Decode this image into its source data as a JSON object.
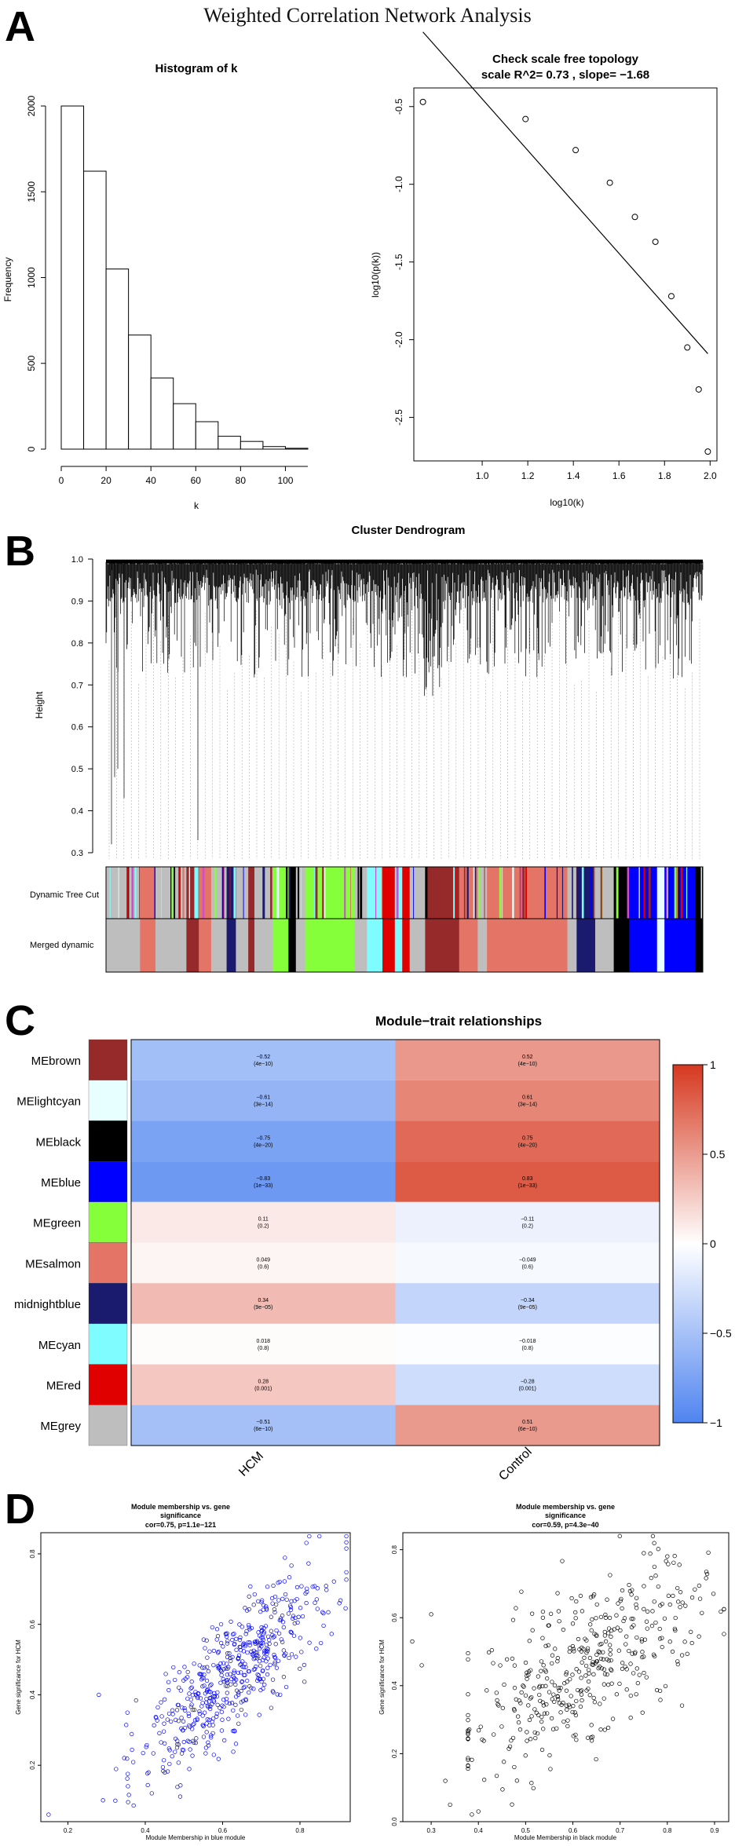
{
  "page": {
    "title": "Weighted Correlation Network Analysis"
  },
  "panels": [
    "A",
    "B",
    "C",
    "D"
  ],
  "colors": {
    "brown": "#962a2a",
    "lightcyan": "#e8ffff",
    "black": "#000000",
    "blue": "#0000ff",
    "green": "#85ff3a",
    "salmon": "#e37466",
    "midnightblue": "#1a1a6e",
    "cyan": "#7ffcff",
    "red": "#e00000",
    "grey": "#bebebe",
    "heat_low": "#4f84f0",
    "heat_mid": "#ffffff",
    "heat_high": "#d6381f"
  },
  "chart_data": [
    {
      "type": "bar",
      "title": "Histogram of k",
      "xlabel": "k",
      "ylabel": "Frequency",
      "bins": [
        [
          0,
          10
        ],
        [
          10,
          20
        ],
        [
          20,
          30
        ],
        [
          30,
          40
        ],
        [
          40,
          50
        ],
        [
          50,
          60
        ],
        [
          60,
          70
        ],
        [
          70,
          80
        ],
        [
          80,
          90
        ],
        [
          90,
          100
        ],
        [
          100,
          110
        ]
      ],
      "values": [
        2000,
        1620,
        1050,
        665,
        415,
        265,
        160,
        75,
        45,
        15,
        5
      ],
      "xticks": [
        "0",
        "20",
        "40",
        "60",
        "80",
        "100"
      ],
      "yticks": [
        "0",
        "500",
        "1000",
        "1500",
        "2000"
      ],
      "xlim": [
        0,
        110
      ],
      "ylim": [
        0,
        2000
      ]
    },
    {
      "type": "scatter",
      "title": "Check scale free topology",
      "subtitle": "scale R^2= 0.73 , slope= −1.68",
      "xlabel": "log10(k)",
      "ylabel": "log10(p(k))",
      "x": [
        0.74,
        1.19,
        1.41,
        1.56,
        1.67,
        1.76,
        1.83,
        1.9,
        1.95,
        1.99
      ],
      "y": [
        -0.47,
        -0.58,
        -0.78,
        -0.99,
        -1.21,
        -1.37,
        -1.72,
        -2.05,
        -2.32,
        -2.72
      ],
      "fit": {
        "x1": 0.74,
        "y1": -0.02,
        "x2": 1.99,
        "y2": -2.09
      },
      "xticks": [
        "1.0",
        "1.2",
        "1.4",
        "1.6",
        "1.8",
        "2.0"
      ],
      "xtick_values": [
        1.0,
        1.2,
        1.4,
        1.6,
        1.8,
        2.0
      ],
      "yticks": [
        "-0.5",
        "-1.0",
        "-1.5",
        "-2.0",
        "-2.5"
      ],
      "ytick_values": [
        -0.5,
        -1.0,
        -1.5,
        -2.0,
        -2.5
      ],
      "xlim": [
        0.7,
        2.03
      ],
      "ylim": [
        -2.78,
        -0.38
      ]
    },
    {
      "type": "other",
      "title": "Cluster Dendrogram",
      "ylabel": "Height",
      "yticks": [
        "1.0",
        "0.9",
        "0.8",
        "0.7",
        "0.6",
        "0.5",
        "0.4",
        "0.3"
      ],
      "ytick_values": [
        1.0,
        0.9,
        0.8,
        0.7,
        0.6,
        0.5,
        0.4,
        0.3
      ],
      "ylim": [
        0.3,
        1.0
      ],
      "color_rows": [
        "Dynamic Tree Cut",
        "Merged dynamic"
      ],
      "merged_modules": [
        [
          "grey",
          0.055
        ],
        [
          "salmon",
          0.025
        ],
        [
          "grey",
          0.05
        ],
        [
          "brown",
          0.02
        ],
        [
          "salmon",
          0.02
        ],
        [
          "grey",
          0.025
        ],
        [
          "midnightblue",
          0.015
        ],
        [
          "grey",
          0.02
        ],
        [
          "brown",
          0.01
        ],
        [
          "grey",
          0.03
        ],
        [
          "green",
          0.025
        ],
        [
          "black",
          0.012
        ],
        [
          "grey",
          0.015
        ],
        [
          "green",
          0.08
        ],
        [
          "grey",
          0.02
        ],
        [
          "cyan",
          0.025
        ],
        [
          "red",
          0.02
        ],
        [
          "cyan",
          0.012
        ],
        [
          "red",
          0.012
        ],
        [
          "grey",
          0.025
        ],
        [
          "brown",
          0.055
        ],
        [
          "salmon",
          0.03
        ],
        [
          "grey",
          0.015
        ],
        [
          "salmon",
          0.13
        ],
        [
          "grey",
          0.015
        ],
        [
          "midnightblue",
          0.03
        ],
        [
          "grey",
          0.03
        ],
        [
          "black",
          0.025
        ],
        [
          "blue",
          0.045
        ],
        [
          "lightcyan",
          0.012
        ],
        [
          "blue",
          0.05
        ],
        [
          "black",
          0.012
        ]
      ]
    },
    {
      "type": "heatmap",
      "title": "Module−trait relationships",
      "rows": [
        "MEbrown",
        "MElightcyan",
        "MEblack",
        "MEblue",
        "MEgreen",
        "MEsalmon",
        "midnightblue",
        "MEcyan",
        "MEred",
        "MEgrey"
      ],
      "row_colors": [
        "brown",
        "lightcyan",
        "black",
        "blue",
        "green",
        "salmon",
        "midnightblue",
        "cyan",
        "red",
        "grey"
      ],
      "columns": [
        "HCM",
        "Control"
      ],
      "values": [
        [
          -0.52,
          0.52
        ],
        [
          -0.61,
          0.61
        ],
        [
          -0.75,
          0.75
        ],
        [
          -0.83,
          0.83
        ],
        [
          0.11,
          -0.11
        ],
        [
          0.049,
          -0.049
        ],
        [
          0.34,
          -0.34
        ],
        [
          0.018,
          -0.018
        ],
        [
          0.28,
          -0.28
        ],
        [
          -0.51,
          0.51
        ]
      ],
      "labels": [
        [
          "−0.52",
          "0.52"
        ],
        [
          "−0.61",
          "0.61"
        ],
        [
          "−0.75",
          "0.75"
        ],
        [
          "−0.83",
          "0.83"
        ],
        [
          "0.11",
          "−0.11"
        ],
        [
          "0.049",
          "−0.049"
        ],
        [
          "0.34",
          "−0.34"
        ],
        [
          "0.018",
          "−0.018"
        ],
        [
          "0.28",
          "−0.28"
        ],
        [
          "−0.51",
          "0.51"
        ]
      ],
      "pvalues": [
        [
          "(4e−10)",
          "(4e−10)"
        ],
        [
          "(3e−14)",
          "(3e−14)"
        ],
        [
          "(4e−20)",
          "(4e−20)"
        ],
        [
          "(1e−33)",
          "(1e−33)"
        ],
        [
          "(0.2)",
          "(0.2)"
        ],
        [
          "(0.6)",
          "(0.6)"
        ],
        [
          "(9e−05)",
          "(9e−05)"
        ],
        [
          "(0.8)",
          "(0.8)"
        ],
        [
          "(0.001)",
          "(0.001)"
        ],
        [
          "(6e−10)",
          "(6e−10)"
        ]
      ],
      "legend_ticks": [
        "1",
        "0.5",
        "0",
        "−0.5",
        "−1"
      ],
      "legend_values": [
        1,
        0.5,
        0,
        -0.5,
        -1
      ],
      "range": [
        -1,
        1
      ]
    },
    {
      "type": "scatter",
      "title": [
        "Module membership vs. gene",
        "significance",
        "cor=0.75, p=1.1e−121"
      ],
      "xlabel": "Module Membership in blue module",
      "ylabel": "Gene significance for HCM",
      "point_color": "blue",
      "n_points": 560,
      "trend": {
        "cor": 0.75,
        "x_mean": 0.62,
        "x_sd": 0.12,
        "slope": 1.0,
        "intercept": -0.16,
        "noise": 0.085
      },
      "extra_points": {
        "x": [
          0.15,
          0.28
        ],
        "y": [
          0.06,
          0.4
        ]
      },
      "xticks": [
        "0.2",
        "0.4",
        "0.6",
        "0.8"
      ],
      "xtick_values": [
        0.2,
        0.4,
        0.6,
        0.8
      ],
      "yticks": [
        "0.2",
        "0.4",
        "0.6",
        "0.8"
      ],
      "ytick_values": [
        0.2,
        0.4,
        0.6,
        0.8
      ],
      "xlim": [
        0.13,
        0.93
      ],
      "ylim": [
        0.04,
        0.86
      ]
    },
    {
      "type": "scatter",
      "title": [
        "Module membership vs. gene",
        "significance",
        "cor=0.59, p=4.3e−40"
      ],
      "xlabel": "Module Membership in black module",
      "ylabel": "Gene significance for HCM",
      "point_color": "black",
      "n_points": 420,
      "trend": {
        "cor": 0.59,
        "x_mean": 0.62,
        "x_sd": 0.13,
        "slope": 0.78,
        "intercept": -0.03,
        "noise": 0.12
      },
      "extra_points": {
        "x": [
          0.26,
          0.28,
          0.3,
          0.33,
          0.34,
          0.4
        ],
        "y": [
          0.53,
          0.46,
          0.61,
          0.12,
          0.05,
          0.03
        ]
      },
      "xticks": [
        "0.3",
        "0.4",
        "0.5",
        "0.6",
        "0.7",
        "0.8",
        "0.9"
      ],
      "xtick_values": [
        0.3,
        0.4,
        0.5,
        0.6,
        0.7,
        0.8,
        0.9
      ],
      "yticks": [
        "0.0",
        "0.2",
        "0.4",
        "0.6",
        "0.8"
      ],
      "ytick_values": [
        0.0,
        0.2,
        0.4,
        0.6,
        0.8
      ],
      "xlim": [
        0.24,
        0.93
      ],
      "ylim": [
        0.0,
        0.85
      ]
    }
  ]
}
